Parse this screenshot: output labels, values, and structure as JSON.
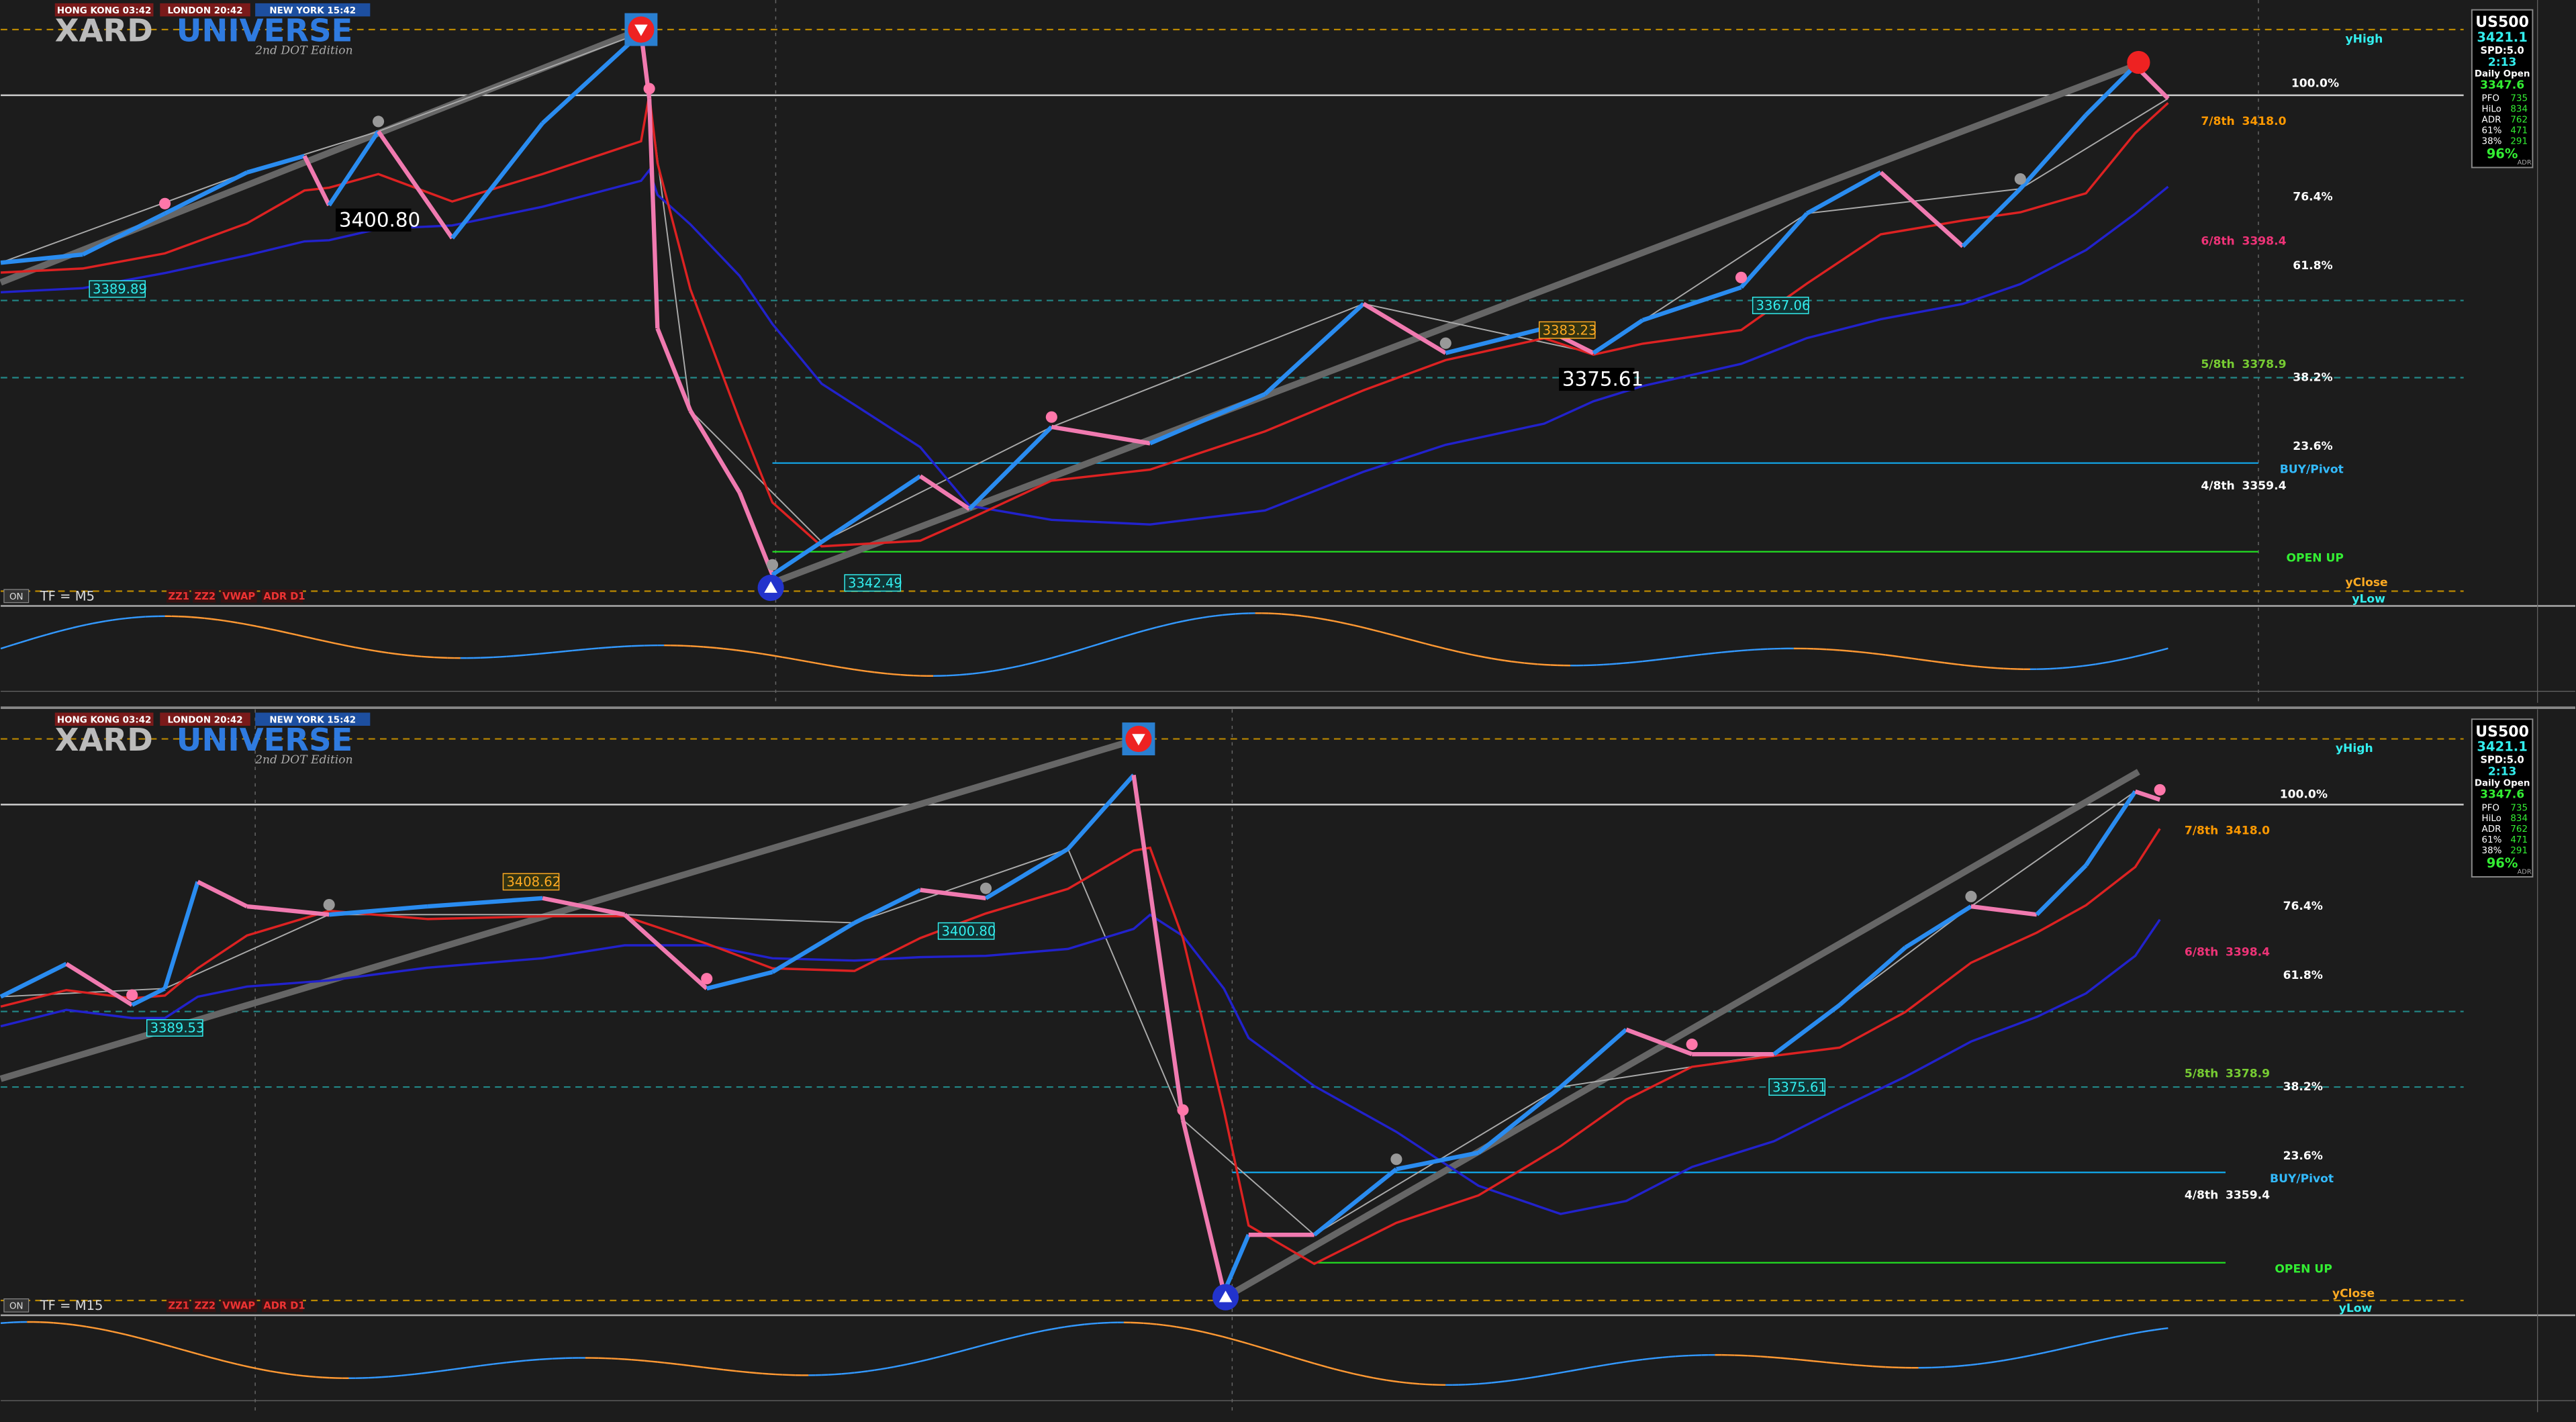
{
  "panels": [
    {
      "sessions": [
        "HONG KONG 03:42",
        "LONDON 20:42",
        "NEW YORK 15:42"
      ],
      "brand": [
        "XARD",
        "UNIVERSE"
      ],
      "edition": "2nd DOT Edition",
      "on": "ON",
      "timeframe": "TF = M5",
      "buttons": [
        "ZZ1",
        "ZZ2",
        "VWAP",
        "ADR D1"
      ],
      "levels": [
        "yHigh",
        "100.0%",
        "7/8th",
        "3418.0",
        "76.4%",
        "6/8th",
        "3398.4",
        "61.8%",
        "5/8th",
        "3378.9",
        "38.2%",
        "23.6%",
        "BUY/Pivot",
        "4/8th",
        "3359.4",
        "OPEN UP",
        "yClose",
        "yLow"
      ],
      "price_labels": [
        "3400.80",
        "3389.89",
        "3383.23",
        "3375.61",
        "3367.06",
        "3342.49"
      ],
      "info": {
        "symbol": "US500",
        "price": "3421.1",
        "spread": "SPD:5.0",
        "timer": "2:13",
        "open_label": "Daily Open",
        "open": "3347.6",
        "rows": [
          [
            "PFO",
            "735"
          ],
          [
            "HiLo",
            "834"
          ],
          [
            "ADR",
            "762"
          ],
          [
            "61%",
            "471"
          ],
          [
            "38%",
            "291"
          ]
        ],
        "percent": "96%",
        "footer": "ADR"
      }
    },
    {
      "sessions": [
        "HONG KONG 03:42",
        "LONDON 20:42",
        "NEW YORK 15:42"
      ],
      "brand": [
        "XARD",
        "UNIVERSE"
      ],
      "edition": "2nd DOT Edition",
      "on": "ON",
      "timeframe": "TF = M15",
      "buttons": [
        "ZZ1",
        "ZZ2",
        "VWAP",
        "ADR D1"
      ],
      "levels": [
        "yHigh",
        "100.0%",
        "7/8th",
        "3418.0",
        "76.4%",
        "6/8th",
        "3398.4",
        "61.8%",
        "5/8th",
        "3378.9",
        "38.2%",
        "23.6%",
        "BUY/Pivot",
        "4/8th",
        "3359.4",
        "OPEN UP",
        "yClose",
        "yLow"
      ],
      "price_labels": [
        "3408.62",
        "3400.80",
        "3389.53",
        "3375.61"
      ],
      "info": {
        "symbol": "US500",
        "price": "3421.1",
        "spread": "SPD:5.0",
        "timer": "2:13",
        "open_label": "Daily Open",
        "open": "3347.6",
        "rows": [
          [
            "PFO",
            "735"
          ],
          [
            "HiLo",
            "834"
          ],
          [
            "ADR",
            "762"
          ],
          [
            "61%",
            "471"
          ],
          [
            "38%",
            "291"
          ]
        ],
        "percent": "96%",
        "footer": "ADR"
      }
    }
  ]
}
